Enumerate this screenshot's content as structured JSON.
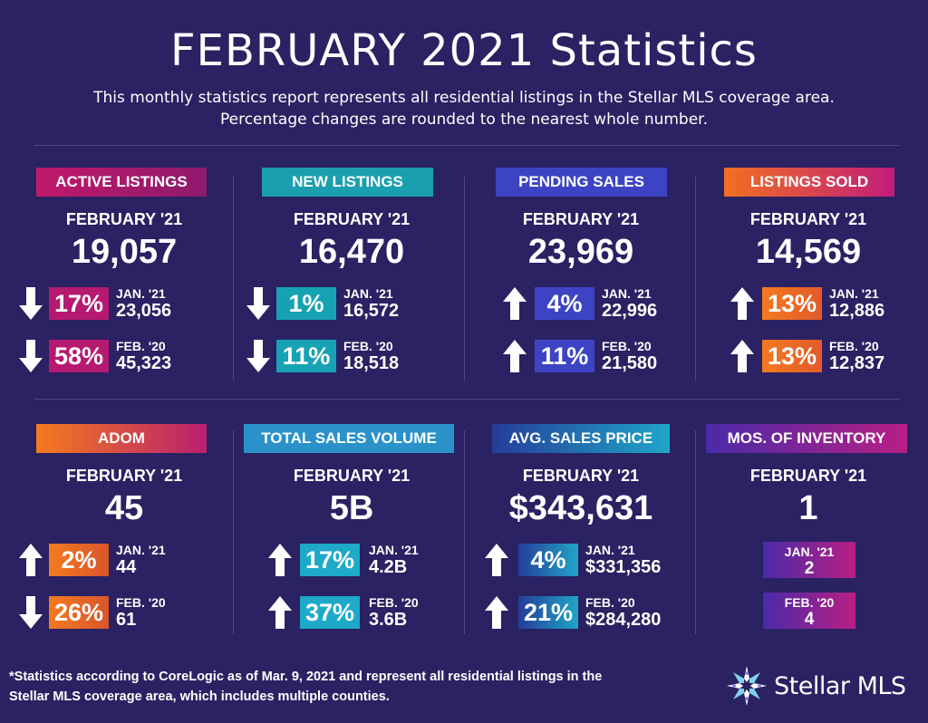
{
  "header": {
    "title": "FEBRUARY 2021 Statistics",
    "subtitle_line1": "This monthly statistics report represents all residential listings in the Stellar MLS coverage area.",
    "subtitle_line2": "Percentage changes are rounded to the nearest whole number."
  },
  "cards": [
    {
      "label": "ACTIVE LISTINGS",
      "period": "FEBRUARY '21",
      "value": "19,057",
      "rows": [
        {
          "direction": "down",
          "pct": "17%",
          "label": "JAN. '21",
          "value": "23,056"
        },
        {
          "direction": "down",
          "pct": "58%",
          "label": "FEB. '20",
          "value": "45,323"
        }
      ]
    },
    {
      "label": "NEW LISTINGS",
      "period": "FEBRUARY '21",
      "value": "16,470",
      "rows": [
        {
          "direction": "down",
          "pct": "1%",
          "label": "JAN. '21",
          "value": "16,572"
        },
        {
          "direction": "down",
          "pct": "11%",
          "label": "FEB. '20",
          "value": "18,518"
        }
      ]
    },
    {
      "label": "PENDING SALES",
      "period": "FEBRUARY '21",
      "value": "23,969",
      "rows": [
        {
          "direction": "up",
          "pct": "4%",
          "label": "JAN. '21",
          "value": "22,996"
        },
        {
          "direction": "up",
          "pct": "11%",
          "label": "FEB. '20",
          "value": "21,580"
        }
      ]
    },
    {
      "label": "LISTINGS SOLD",
      "period": "FEBRUARY '21",
      "value": "14,569",
      "rows": [
        {
          "direction": "up",
          "pct": "13%",
          "label": "JAN. '21",
          "value": "12,886"
        },
        {
          "direction": "up",
          "pct": "13%",
          "label": "FEB. '20",
          "value": "12,837"
        }
      ]
    },
    {
      "label": "ADOM",
      "period": "FEBRUARY '21",
      "value": "45",
      "rows": [
        {
          "direction": "up",
          "pct": "2%",
          "label": "JAN. '21",
          "value": "44"
        },
        {
          "direction": "down",
          "pct": "26%",
          "label": "FEB. '20",
          "value": "61"
        }
      ]
    },
    {
      "label": "TOTAL SALES VOLUME",
      "period": "FEBRUARY '21",
      "value": "5B",
      "rows": [
        {
          "direction": "up",
          "pct": "17%",
          "label": "JAN. '21",
          "value": "4.2B"
        },
        {
          "direction": "up",
          "pct": "37%",
          "label": "FEB. '20",
          "value": "3.6B"
        }
      ]
    },
    {
      "label": "AVG. SALES PRICE",
      "period": "FEBRUARY '21",
      "value": "$343,631",
      "rows": [
        {
          "direction": "up",
          "pct": "4%",
          "label": "JAN. '21",
          "value": "$331,356"
        },
        {
          "direction": "up",
          "pct": "21%",
          "label": "FEB. '20",
          "value": "$284,280"
        }
      ]
    },
    {
      "label": "MOS. OF INVENTORY",
      "period": "FEBRUARY '21",
      "value": "1",
      "boxes": [
        {
          "label": "JAN. '21",
          "value": "2"
        },
        {
          "label": "FEB. '20",
          "value": "4"
        }
      ]
    }
  ],
  "colors": {
    "background": "#2a2262",
    "active": [
      "#c0196a",
      "#8d1a6d"
    ],
    "new": [
      "#17a2b4",
      "#1f9aa8"
    ],
    "pending": [
      "#3d44c4",
      "#3a3fb0"
    ],
    "sold": [
      "#f26f21",
      "#c01d7b"
    ],
    "adom": [
      "#f47a20",
      "#b81f6f"
    ],
    "volume": [
      "#2a92c9",
      "#1fb1c7"
    ],
    "price": [
      "#253d99",
      "#1fa6c8"
    ],
    "inventory": [
      "#4a2aa8",
      "#b81f84"
    ]
  },
  "footer": {
    "line1": "*Statistics according to CoreLogic as of Mar. 9, 2021 and represent all residential listings in the",
    "line2": "Stellar MLS coverage area, which includes multiple counties.",
    "logo_text": "Stellar MLS",
    "logo_icon": "star-burst-icon"
  }
}
